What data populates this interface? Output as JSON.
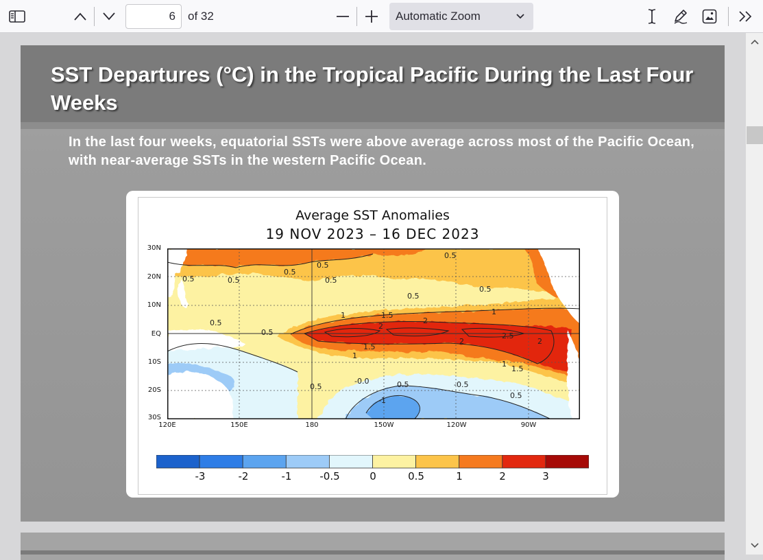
{
  "toolbar": {
    "sidebar_toggle": "sidebar-toggle-icon",
    "page_number": "6",
    "page_count": "of 32",
    "zoom": "Automatic Zoom"
  },
  "slide": {
    "title": "SST Departures (°C) in the Tropical Pacific During the Last Four Weeks",
    "subtitle": "In the last four weeks, equatorial SSTs were above average across most of the Pacific Ocean, with near-average SSTs in the western Pacific Ocean."
  },
  "chart_data": {
    "type": "heatmap",
    "title": "Average SST Anomalies",
    "subtitle": "19 NOV 2023 – 16 DEC 2023",
    "y_ticks": [
      "30N",
      "20N",
      "10N",
      "EQ",
      "10S",
      "20S",
      "30S"
    ],
    "x_ticks": [
      "120E",
      "150E",
      "180",
      "150W",
      "120W",
      "90W"
    ],
    "colorbar_labels": [
      "-3",
      "-2",
      "-1",
      "-0.5",
      "0",
      "0.5",
      "1",
      "2",
      "3"
    ],
    "colorbar_colors": [
      "#1c62cc",
      "#2e7de6",
      "#5ca4ef",
      "#9dcbf7",
      "#e2f6fc",
      "#fdf2a2",
      "#fcc44a",
      "#f57a1f",
      "#e2280f",
      "#a60a07"
    ],
    "contour_labels": [
      "0.5",
      "1",
      "1.5",
      "2",
      "2.5",
      "-0.5",
      "-1",
      "0"
    ]
  }
}
